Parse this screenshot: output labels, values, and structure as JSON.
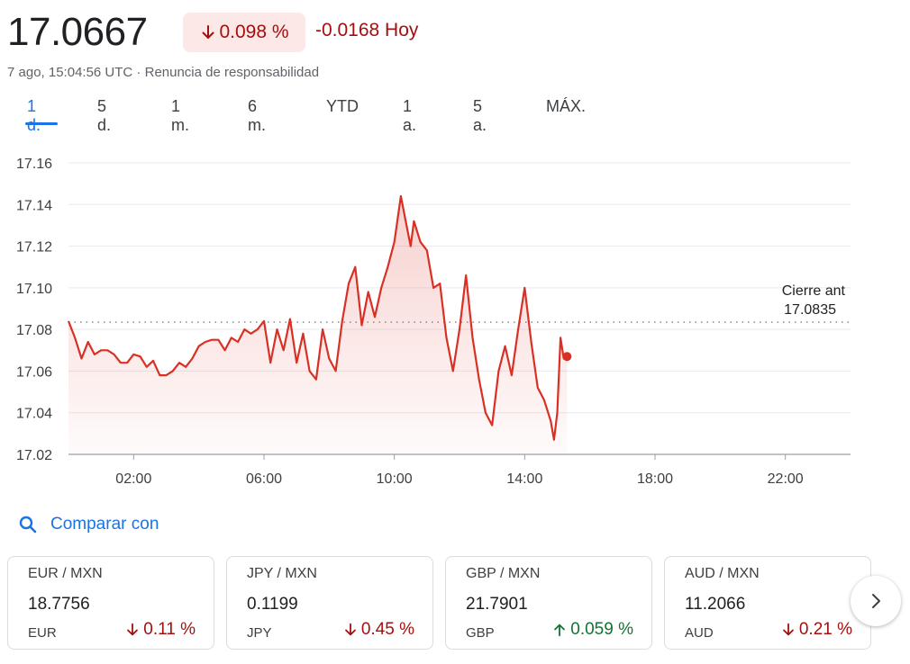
{
  "quote": {
    "price": "17.0667",
    "change_percent": "0.098 %",
    "change_abs": "-0.0168 Hoy",
    "timestamp": "7 ago, 15:04:56 UTC",
    "separator": " · ",
    "disclaimer": "Renuncia de responsabilidad",
    "down_color": "#a50e0e"
  },
  "ranges": [
    {
      "label": "1 d.",
      "active": true
    },
    {
      "label": "5 d."
    },
    {
      "label": "1 m."
    },
    {
      "label": "6 m."
    },
    {
      "label": "YTD"
    },
    {
      "label": "1 a."
    },
    {
      "label": "5 a."
    },
    {
      "label": "MÁX."
    }
  ],
  "compare": {
    "label": "Comparar con",
    "icon": "search-icon"
  },
  "cards": [
    {
      "pair": "EUR / MXN",
      "value": "18.7756",
      "currency": "EUR",
      "change": "0.11 %",
      "direction": "down"
    },
    {
      "pair": "JPY / MXN",
      "value": "0.1199",
      "currency": "JPY",
      "change": "0.45 %",
      "direction": "down"
    },
    {
      "pair": "GBP / MXN",
      "value": "21.7901",
      "currency": "GBP",
      "change": "0.059 %",
      "direction": "up"
    },
    {
      "pair": "AUD / MXN",
      "value": "11.2066",
      "currency": "AUD",
      "change": "0.21 %",
      "direction": "down"
    }
  ],
  "next_icon": "chevron-right-icon",
  "chart_data": {
    "type": "line",
    "ylim": [
      17.02,
      17.16
    ],
    "xlim": [
      0,
      24
    ],
    "yticks": [
      "17.16",
      "17.14",
      "17.12",
      "17.10",
      "17.08",
      "17.06",
      "17.04",
      "17.02"
    ],
    "xticks": [
      "02:00",
      "06:00",
      "10:00",
      "14:00",
      "18:00",
      "22:00"
    ],
    "xtick_hours": [
      2,
      6,
      10,
      14,
      18,
      22
    ],
    "prev_close": 17.0835,
    "prev_close_label": "Cierre ant",
    "prev_close_value": "17.0835",
    "line_color": "#d93025",
    "grid": true,
    "series": [
      {
        "x": [
          0.0,
          0.2,
          0.4,
          0.6,
          0.8,
          1.0,
          1.2,
          1.4,
          1.6,
          1.8,
          2.0,
          2.2,
          2.4,
          2.6,
          2.8,
          3.0,
          3.2,
          3.4,
          3.6,
          3.8,
          4.0,
          4.2,
          4.4,
          4.6,
          4.8,
          5.0,
          5.2,
          5.4,
          5.6,
          5.8,
          6.0,
          6.2,
          6.4,
          6.6,
          6.8,
          7.0,
          7.2,
          7.4,
          7.6,
          7.8,
          8.0,
          8.2,
          8.4,
          8.6,
          8.8,
          9.0,
          9.2,
          9.4,
          9.6,
          9.8,
          10.0,
          10.2,
          10.4,
          10.5,
          10.6,
          10.8,
          11.0,
          11.2,
          11.4,
          11.6,
          11.8,
          12.0,
          12.2,
          12.4,
          12.6,
          12.8,
          13.0,
          13.2,
          13.4,
          13.6,
          13.8,
          14.0,
          14.2,
          14.4,
          14.6,
          14.8,
          14.9,
          15.0,
          15.1,
          15.2,
          15.3
        ],
        "y": [
          17.084,
          17.076,
          17.066,
          17.074,
          17.068,
          17.07,
          17.07,
          17.068,
          17.064,
          17.064,
          17.068,
          17.067,
          17.062,
          17.065,
          17.058,
          17.058,
          17.06,
          17.064,
          17.062,
          17.066,
          17.072,
          17.074,
          17.075,
          17.075,
          17.07,
          17.076,
          17.074,
          17.08,
          17.078,
          17.08,
          17.084,
          17.064,
          17.08,
          17.07,
          17.085,
          17.064,
          17.078,
          17.06,
          17.056,
          17.08,
          17.066,
          17.06,
          17.084,
          17.102,
          17.11,
          17.082,
          17.098,
          17.086,
          17.1,
          17.11,
          17.122,
          17.144,
          17.128,
          17.12,
          17.132,
          17.122,
          17.118,
          17.1,
          17.102,
          17.076,
          17.06,
          17.08,
          17.106,
          17.076,
          17.056,
          17.04,
          17.034,
          17.06,
          17.072,
          17.058,
          17.08,
          17.1,
          17.074,
          17.052,
          17.046,
          17.036,
          17.027,
          17.04,
          17.076,
          17.066,
          17.067
        ]
      }
    ]
  }
}
